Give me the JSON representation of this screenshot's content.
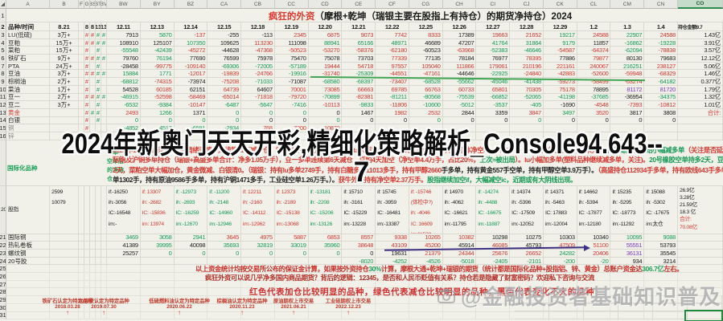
{
  "sheet": {
    "corner_glyph": "◢",
    "col_letters": [
      "A",
      "B",
      "F",
      "G",
      "BS",
      "BT",
      "BV",
      "BW",
      "BY",
      "BZ",
      "CA",
      "CB",
      "CC",
      "CD",
      "CE",
      "CF",
      "CG",
      "CH",
      "CI",
      "CJ",
      "CK",
      "CL",
      "CM",
      "CN",
      "CO"
    ],
    "title_red": "疯狂的外资",
    "title_rest": "（摩根+乾坤（瑞银主要在股指上有持仓）的期货净持仓）2024"
  },
  "overlay": {
    "line1": "2024年新奥门天天开彩,精细化策略解析_Console94.643--",
    "line2": "7"
  },
  "watermark": {
    "icon": "camera-icon",
    "text": "@金融投资者基础知识普及"
  },
  "grid": {
    "dates": [
      "12.11",
      "12.13",
      "12.14",
      "12.15",
      "12.18",
      "12.19",
      "12.20",
      "12.21",
      "12.22",
      "12.25",
      "12.26",
      "12.27",
      "12.28",
      "12.29",
      "1.2",
      "1.3",
      "1.4"
    ],
    "header_label": "品种/时间",
    "header_b": "8.21",
    "last_header": "持仓金额9.7",
    "rows": [
      {
        "n": "1",
        "cls": "merged",
        "h": 17,
        "label": "",
        "b": "",
        "marks": [],
        "cells": [],
        "last": ""
      },
      {
        "n": "2",
        "cls": "dh",
        "h": 11,
        "label": "品种/时间",
        "lc": "k",
        "b": "8.21",
        "marks": [
          "",
          "k:8",
          "k:8",
          "k:13",
          "k:13"
        ],
        "cells": [
          "k:12.11",
          "k:12.13",
          "k:12.14",
          "k:12.15",
          "k:12.18",
          "k:12.19",
          "k:12.20",
          "k:12.21",
          "k:12.22",
          "k:12.25",
          "k:12.26",
          "k:12.27",
          "k:12.28",
          "k:12.29",
          "k:1.2",
          "k:1.3",
          "k:1.4"
        ],
        "last": "k:持仓金额9.7"
      },
      {
        "n": "3",
        "label": "LU(低硫)",
        "lc": "k",
        "b": "3万+",
        "marks": [
          "",
          "r:#",
          "r:#",
          "g:#",
          "g:#"
        ],
        "cells": [
          "k:7913",
          "g:5870",
          "r:-137",
          "k:-255",
          "k:-113",
          "r:2345",
          "r:6875",
          "r:9073",
          "r:7742",
          "r:8333",
          "k:17389",
          "r:19663",
          "r:21652",
          "g:19217",
          "r:24588",
          "g:22907",
          "r:24588"
        ],
        "last": "k:1.43亿"
      },
      {
        "n": "4",
        "label": "豆粕",
        "lc": "k",
        "b": "15万+",
        "marks": [
          "",
          "r:#",
          "r:#",
          "g:#",
          "g:#"
        ],
        "cells": [
          "k:108910",
          "k:125107",
          "g:107350",
          "k:109625",
          "r:113230",
          "k:111098",
          "g:88941",
          "g:65166",
          "g:48971",
          "k:46689",
          "k:47207",
          "g:41764",
          "g:31864",
          "g:9179",
          "k:11857",
          "g:-16862",
          "g:-19228"
        ],
        "last": "k:3.91亿"
      },
      {
        "n": "5",
        "label": "菜粕",
        "lc": "k",
        "b": "15万+",
        "marks": [
          "",
          "r:#",
          "",
          "g:#",
          ""
        ],
        "cells": [
          "g:-55548",
          "g:-42439",
          "r:-45272",
          "k:-44628",
          "r:-47368",
          "r:-50523",
          "r:-53270",
          "r:-58376",
          "r:-62180",
          "k:-60523",
          "r:-63968",
          "g:-52383",
          "g:-46646",
          "r:-54587",
          "r:-64374",
          "g:-62094",
          "r:-78838"
        ],
        "last": "k:3.57亿"
      },
      {
        "n": "6",
        "label": "铁矿石",
        "lc": "k",
        "b": "9万+",
        "marks": [
          "",
          "r:#",
          "r:#",
          "g:#",
          "g:#"
        ],
        "cells": [
          "k:79760",
          "g:76194",
          "k:77690",
          "k:76599",
          "k:75978",
          "k:75470",
          "k:75078",
          "k:73703",
          "r:77339",
          "k:77135",
          "k:78184",
          "k:76977",
          "r:78395",
          "k:77886",
          "r:79877",
          "k:80130",
          "k:79683"
        ],
        "last": "k:12.12亿"
      },
      {
        "n": "7",
        "label": "PTA",
        "lc": "k",
        "b": "24万+",
        "marks": [
          "",
          "r:#",
          "",
          "g:#",
          ""
        ],
        "cells": [
          "k:-28458",
          "r:-99775",
          "r:-109140",
          "g:-69306",
          "g:-72005",
          "g:-57189",
          "r:19444",
          "r:54718",
          "r:97557",
          "r:105040",
          "r:111866",
          "r:179061",
          "r:210196",
          "r:221161",
          "r:240067",
          "g:216251",
          "r:238127"
        ],
        "last": "k:5.06亿"
      },
      {
        "n": "8",
        "label": "豆油",
        "lc": "k",
        "b": "3万+",
        "marks": [
          "",
          "r:#",
          "r:#",
          "g:#",
          "g:#"
        ],
        "cells": [
          "g:15884",
          "g:1771",
          "r:-12017",
          "r:-19839",
          "r:-24766",
          "g:-19916",
          "r:-31740",
          "g:-25309",
          "r:-44551",
          "r:-47161",
          "k:-44646",
          "g:-22925",
          "r:-24840",
          "r:-42883",
          "r:-52600",
          "r:-59948",
          "r:-68329"
        ],
        "last": "k:1.46亿"
      },
      {
        "n": "9",
        "label": "棕榈油",
        "lc": "k",
        "b": "2万+",
        "marks": [
          "",
          "r:#",
          "",
          "g:#",
          ""
        ],
        "cells": [
          "g:-68812",
          "r:-74315",
          "k:-73974",
          "r:-75208",
          "g:-71033",
          "k:-71087",
          "g:-68580",
          "g:-68397",
          "r:-73407",
          "g:-68528",
          "g:-55662",
          "g:-45046",
          "g:-41438",
          "r:-59273",
          "r:-58499",
          "r:-63274",
          "g:-64182"
        ],
        "last": "k:0.377亿"
      },
      {
        "n": "10",
        "label": "菜油",
        "lc": "k",
        "b": "1万+",
        "marks": [
          "",
          "r:#",
          "",
          "g:#",
          ""
        ],
        "cells": [
          "k:54528",
          "r:60185",
          "k:62151",
          "r:64739",
          "k:64607",
          "r:70001",
          "r:73085",
          "r:66663",
          "r:69785",
          "r:66763",
          "r:60733",
          "r:65801",
          "r:70305",
          "r:75178",
          "k:78895",
          "p:81172",
          "p:81720"
        ],
        "last": "k:1.79亿"
      },
      {
        "n": "11",
        "label": "豆一",
        "lc": "k",
        "b": "2万+",
        "marks": [
          "",
          "r:#",
          "r:#",
          "g:#",
          "g:#"
        ],
        "cells": [
          "g:-46915",
          "r:-52598",
          "r:-58469",
          "r:-65014",
          "r:-71818",
          "r:-79720",
          "g:-70899",
          "r:-82381",
          "g:-81211",
          "g:-80568",
          "g:-75539",
          "g:-66852",
          "g:-52065",
          "g:-41198",
          "g:-37685",
          "k:-36954",
          "g:-34375"
        ],
        "last": "k:1.32亿"
      },
      {
        "n": "12",
        "label": "豆二",
        "lc": "k",
        "b": "3万+",
        "marks": [
          "",
          "r:#",
          "",
          "g:#",
          ""
        ],
        "cells": [
          "g:-6532",
          "g:-9384",
          "r:-10147",
          "g:-6487",
          "g:-5647",
          "g:-7416",
          "r:-10113",
          "g:-9833",
          "r:-11806",
          "g:-10600",
          "g:-5012",
          "g:-3537",
          "g:-405",
          "k:-1690",
          "r:-4548",
          "r:-7393",
          "r:-10812"
        ],
        "last": "k:1.01亿"
      },
      {
        "n": "13",
        "label": "黄金",
        "lc": "r",
        "b": "",
        "marks": [
          "",
          "r:#",
          "g:#",
          "g:#",
          ""
        ],
        "cells": [
          "r:2493",
          "g:1266",
          "k:1371",
          "g:0",
          "g:0",
          "g:0",
          "k:0",
          "k:1467",
          "r:1982",
          "r:2532",
          "k:2844",
          "k:3359",
          "r:3847",
          "g:3497",
          "r:3520",
          "k:3817",
          "k:3808"
        ],
        "last": "r:合计:"
      },
      {
        "n": "14",
        "label": "白银",
        "lc": "k",
        "b": "",
        "marks": [
          "",
          "r:#",
          "",
          "g:#",
          ""
        ],
        "cells": [
          "g:0",
          "g:0",
          "g:0",
          "g:0",
          "k:0",
          "k:0",
          "g:0",
          "k:0",
          "k:0",
          "g:0",
          "k:0",
          "k:0",
          "g:0",
          "k:0",
          "k:0",
          "k:0",
          "k:0"
        ],
        "last": ""
      },
      {
        "n": "15",
        "label": "铜",
        "lc": "y",
        "b": "",
        "marks": [
          "",
          "r:#",
          "",
          "",
          ""
        ],
        "cells": [
          "g:-4852",
          "g:-4517",
          "g:-6591",
          "g:-2934",
          "r:768",
          "r:7200",
          "r:10870",
          "",
          "",
          "",
          "",
          "",
          "",
          "",
          "",
          "",
          ""
        ],
        "last": ""
      },
      {
        "n": "16",
        "label": "锌",
        "lc": "y",
        "b": "",
        "marks": [],
        "cells": [],
        "last": ""
      },
      {
        "n": "",
        "cls": "gap",
        "h": 57,
        "label": "",
        "b": "",
        "marks": [],
        "cells": [],
        "last": ""
      },
      {
        "n": "20",
        "cls": "tall",
        "h": 60,
        "label": "股指",
        "lc": "k",
        "b": "2599\n10079",
        "marks": [],
        "cells": [
          "k:if:-16250\nih:-3056\nIC:-16548\nim:-",
          "r:if: 13307\nih: -2682\nIC: -15836\nim: 13974",
          "g:if: -12973\nih: -2693\nIC: -16259\nim:-12670",
          "g:if: -11200\nih: -2148\nIC: -14960\nim:-12946",
          "r:if: 12211\nih: -2160\nIC: -14112\nim:-12962",
          "r:if: 12373\nih: -2189\nIC: -15138\nim:-13068",
          "g:if: -13181\nih: -2208\nIC: -15206\nim:-13126",
          "k:if: 15710\nih: -3161\nIC: -15229\nim:-13228",
          "k:if: 15745\nih: -3959\nIC: -16481\nim:-13387",
          "r:if: -15746\n(体检中?)\nih: -4046\nIC: 16609\nim:11508",
          "k:if: 14970\nih: -4062\nIC: -16621\nim:-11795",
          "g:if: -14274\nih: -4488\nIC: -16675\nim:-11887",
          "k:if: 14374\nih: -5396\nIC: -17509\nim:-12052",
          "k:if: 14371\nih: -5463\nIC: 17883\nim:-12004",
          "k:if: 14662\nih: -5394\nIC: -17877\nim:-12180",
          "k:if: 15235\nih: -5295\nIC: -18773\nim:-11292",
          "k:if: 15088\nih: -5302\nIC: -17675\nim:太仓"
        ],
        "last": "m|k:26.9亿|k:3.28亿|k:21.59亿|k:18.3 亿|r:合计:|r:70.08亿"
      },
      {
        "n": "21",
        "label": "国际铜",
        "lc": "k",
        "b": "",
        "marks": [],
        "cells": [
          "g:3469",
          "g:3058",
          "g:2941",
          "r:3645",
          "r:4975",
          "r:5887",
          "r:6853",
          "r:8557",
          "r:9338",
          "r:10265",
          "r:10382",
          "k:10298",
          "k:10275",
          "k:10303",
          "k:10340",
          "g:10095",
          "g:9088"
        ],
        "last": ""
      },
      {
        "n": "22",
        "label": "热轧卷板",
        "lc": "k",
        "b": "",
        "marks": [],
        "cells": [
          "k:41389",
          "g:39995",
          "k:40098",
          "g:35693",
          "g:32819",
          "g:33019",
          "g:35960",
          "r:38648",
          "r:43109",
          "r:45200",
          "k:45914",
          "r:46085",
          "k:45793",
          "r:47509",
          "r:51100",
          "p:55551",
          "k:53793"
        ],
        "last": ""
      },
      {
        "n": "23",
        "label": "螺纹钢",
        "lc": "k",
        "b": "",
        "marks": [],
        "cells": [
          "k:25257",
          "g:0",
          "g:0",
          "g:0",
          "g:0",
          "g:0",
          "g:0",
          "k:0",
          "k:19631",
          "r:21379",
          "r:24344",
          "r:25676",
          "r:26652",
          "g:24282",
          "r:20406",
          "p:36131",
          "k:35545"
        ],
        "last": ""
      },
      {
        "n": "24",
        "label": "20号胶",
        "lc": "k",
        "b": "",
        "marks": [],
        "cells": [
          "",
          "",
          "",
          "",
          "",
          "",
          "",
          "g:-8020",
          "g:-4252",
          "g:-4526",
          "g:-5018",
          "g:-2405",
          "g:-2101",
          "g:-200",
          "g:-20",
          "k:934",
          "k:3214"
        ],
        "last": ""
      },
      {
        "n": "25",
        "cls": "ghost",
        "label": "",
        "b": "",
        "marks": [],
        "cells": [],
        "last": ""
      },
      {
        "n": "26",
        "cls": "ghost",
        "label": "",
        "b": "",
        "marks": [],
        "cells": [],
        "last": ""
      },
      {
        "n": "27",
        "cls": "ghost",
        "label": "",
        "b": "",
        "marks": [],
        "cells": [],
        "last": ""
      },
      {
        "n": "28",
        "cls": "ghost",
        "label": "",
        "b": "",
        "marks": [],
        "cells": [],
        "last": ""
      },
      {
        "n": "29",
        "cls": "ghost",
        "label": "",
        "b": "",
        "marks": [],
        "cells": [],
        "last": ""
      },
      {
        "n": "30",
        "cls": "ghost",
        "label": "",
        "b": "",
        "marks": [],
        "cells": [],
        "last": ""
      },
      {
        "n": "31",
        "cls": "ghost",
        "label": "",
        "b": "",
        "marks": [],
        "cells": [],
        "last": ""
      }
    ]
  },
  "side_note": "多单-\n空单后\n的净持\n仓",
  "intl_label": "国际化品种",
  "analysis": {
    "lines": [
      [
        {
          "t": "2024年1.4今日影响：外资情绪谨慎：连续第11天减多仓，铁矿持平（重点关注？），pta大幅加仓多单（关注反弹？），外资总体净空单：21.4万手（大幅加空豆油，行情未完），",
          "c": "r"
        },
        {
          "t": "热轧螺纹钢开始小幅减多单",
          "c": "g"
        },
        {
          "t": "（关注是否延续，谨慎参与），国",
          "c": "r"
        }
      ],
      [
        {
          "t": "际铜及沪铜多单持仓（瑞银+高盛多单合计：净多1.05万手），豆一多单连续第6天减仓，豆粕4天加空（净空单4.4万手，占比20%，",
          "c": "r"
        },
        {
          "t": "上次≈被出局",
          "c": "g"
        },
        {
          "t": "）。lu小幅加多单(塑料品种继续减多单，关注)。",
          "c": "r"
        },
        {
          "t": "20号橡胶空单持多2天，豆粕多持空单",
          "c": "g"
        }
      ],
      [
        {
          "t": "2天，菜粕空单大幅加仓，黄金微减、白银清0。（瑞银：持有lu多单2749手，持有白糖多单11013多手，持有甲醇2660",
          "c": "r"
        },
        {
          "t": "手多单，持有黄金557手空单，持有甲醇空单3.9万手）。",
          "c": "k"
        },
        {
          "t": "（高盛持仓112934手多单，持有欧线643手多单，持有沥青多",
          "c": "r"
        }
      ],
      [
        {
          "t": "单1302手，持有原油9586手多单，持有沪铜1471多手，工业硅空单1.26万手。）。",
          "c": "k"
        },
        {
          "t": "获牛外资持有净空单2.37万手。",
          "c": "r"
        },
        {
          "t": "股指继续加空if，大幅减空ic，",
          "c": "g"
        },
        {
          "t": "近期或有大阴线出现。",
          "c": "g"
        }
      ]
    ]
  },
  "notes": {
    "line1_pre": "以上资金统计均按交易所公布的保证金计算，如果按外资持仓",
    "line1_green1": "30%",
    "line1_mid": "计算，摩根大通+乾坤+瑞银的期货（统计都是国际化品种+股指铝、锌、黄金）总账户资金达",
    "line1_green2": "306.7亿",
    "line1_end": "左右。",
    "line2": "疯狂外资可以说几乎净多国内商品期货？背后的逻辑：12345，是否和人民币贬值有关系？持仓若是隐藏了财富密码？欢迎私下咨询与交流",
    "legend": "红色代表加仓比较明显的品种，绿色代表减仓比较明显的品种，黑色代表变化不大的品种"
  },
  "milestones": [
    {
      "text": "铁矿石认定为特定品种",
      "date": "2018.03.28",
      "arrow": "↑"
    },
    {
      "text": "20号胶认定为特定品种",
      "date": "2019.07.30",
      "arrow": "↑"
    },
    {
      "text": "低硫燃料油认定为特定品种",
      "date": "2020.06.22",
      "arrow": "↑"
    },
    {
      "text": "棕榈油认定为特定品种",
      "date": "2020.11.23",
      "arrow": "↑"
    },
    {
      "text": "原油期权上市交易",
      "date": "2021.06.21",
      "arrow": "↑"
    },
    {
      "text": "工业硅期权上市交易",
      "date": "2022.12.23",
      "arrow": "↑"
    }
  ]
}
